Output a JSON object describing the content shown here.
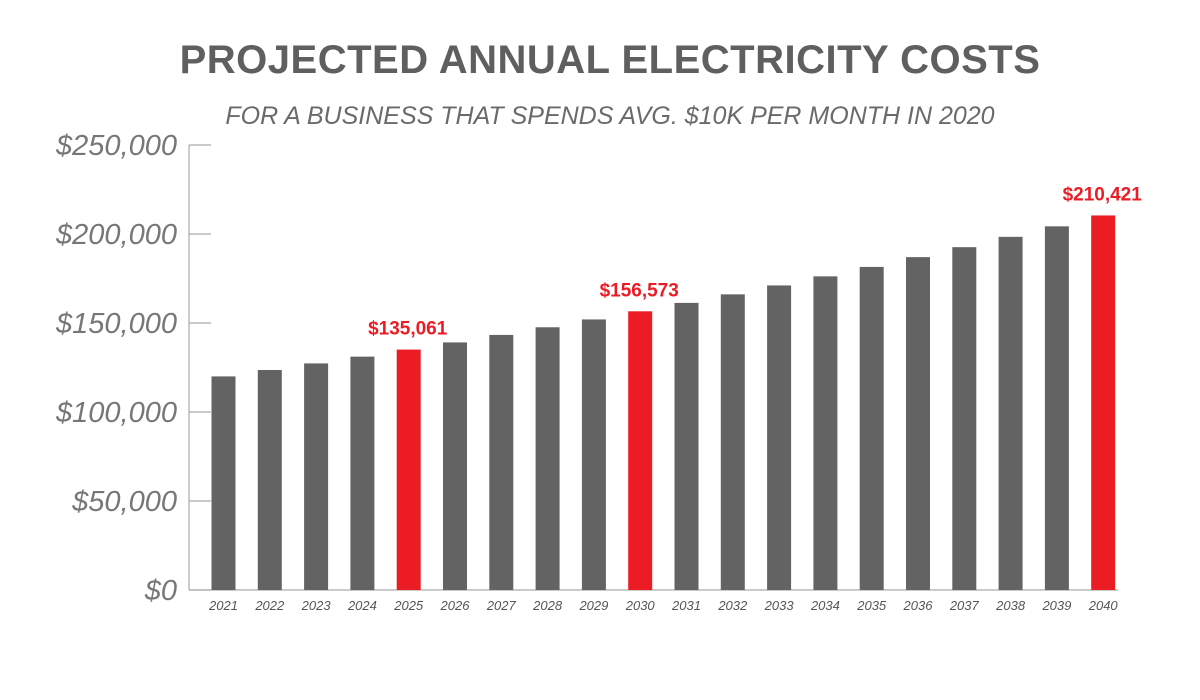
{
  "chart_data": {
    "type": "bar",
    "title": "PROJECTED ANNUAL ELECTRICITY COSTS",
    "subtitle": "FOR A BUSINESS THAT SPENDS AVG. $10K PER MONTH IN 2020",
    "xlabel": "",
    "ylabel": "",
    "ylim": [
      0,
      250000
    ],
    "yticks": [
      0,
      50000,
      100000,
      150000,
      200000,
      250000
    ],
    "ytick_labels": [
      "$0",
      "$50,000",
      "$100,000",
      "$150,000",
      "$200,000",
      "$250,000"
    ],
    "grid": false,
    "categories": [
      "2021",
      "2022",
      "2023",
      "2024",
      "2025",
      "2026",
      "2027",
      "2028",
      "2029",
      "2030",
      "2031",
      "2032",
      "2033",
      "2034",
      "2035",
      "2036",
      "2037",
      "2038",
      "2039",
      "2040"
    ],
    "values": [
      120000,
      123600,
      127300,
      131100,
      135061,
      139100,
      143300,
      147600,
      152000,
      156573,
      161300,
      166100,
      171100,
      176200,
      181500,
      187000,
      192600,
      198400,
      204300,
      210421
    ],
    "highlighted": [
      "2025",
      "2030",
      "2040"
    ],
    "annotations": [
      {
        "category": "2025",
        "text": "$135,061"
      },
      {
        "category": "2030",
        "text": "$156,573"
      },
      {
        "category": "2040",
        "text": "$210,421"
      }
    ],
    "colors": {
      "bar": "#636363",
      "highlight": "#ec1c24",
      "axis": "#aaaaaa"
    }
  }
}
